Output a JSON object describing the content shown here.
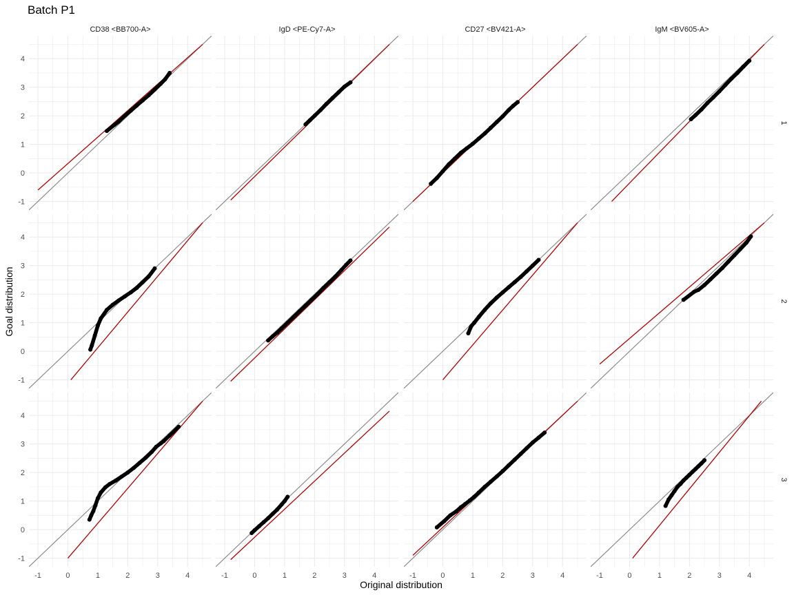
{
  "chart_data": {
    "type": "scatter",
    "title": "Batch P1",
    "xlabel": "Original distribution",
    "ylabel": "Goal distribution",
    "columns": [
      "CD38 <BB700-A>",
      "IgD <PE-Cy7-A>",
      "CD27 <BV421-A>",
      "IgM <BV605-A>"
    ],
    "rows": [
      "1",
      "2",
      "3"
    ],
    "xlim": [
      -1.3,
      4.8
    ],
    "ylim": [
      -1.3,
      4.8
    ],
    "x_ticks": [
      "-1",
      "0",
      "1",
      "2",
      "3",
      "4"
    ],
    "y_ticks": [
      "-1",
      "0",
      "1",
      "2",
      "3",
      "4"
    ],
    "grid": true,
    "reference_line": {
      "slope": 1,
      "intercept": 0,
      "color": "#8c8c8c"
    },
    "fit_line_color": "#b30000",
    "point_color": "#000000",
    "panels": [
      {
        "row": "1",
        "column": "CD38 <BB700-A>",
        "fit": [
          [
            -1.0,
            -0.6
          ],
          [
            4.5,
            4.5
          ]
        ],
        "points": [
          [
            1.3,
            1.47
          ],
          [
            1.55,
            1.68
          ],
          [
            1.7,
            1.8
          ],
          [
            1.9,
            2.0
          ],
          [
            2.1,
            2.18
          ],
          [
            2.3,
            2.36
          ],
          [
            2.5,
            2.54
          ],
          [
            2.7,
            2.72
          ],
          [
            2.9,
            2.92
          ],
          [
            3.1,
            3.12
          ],
          [
            3.25,
            3.28
          ],
          [
            3.4,
            3.5
          ]
        ]
      },
      {
        "row": "1",
        "column": "IgD <PE-Cy7-A>",
        "fit": [
          [
            -0.8,
            -0.95
          ],
          [
            4.5,
            4.5
          ]
        ],
        "points": [
          [
            1.7,
            1.7
          ],
          [
            1.85,
            1.85
          ],
          [
            2.0,
            2.0
          ],
          [
            2.2,
            2.2
          ],
          [
            2.4,
            2.42
          ],
          [
            2.6,
            2.62
          ],
          [
            2.8,
            2.82
          ],
          [
            3.0,
            3.02
          ],
          [
            3.2,
            3.17
          ]
        ]
      },
      {
        "row": "1",
        "column": "CD27 <BV421-A>",
        "fit": [
          [
            -1.0,
            -1.0
          ],
          [
            4.5,
            4.5
          ]
        ],
        "points": [
          [
            -0.4,
            -0.38
          ],
          [
            -0.2,
            -0.18
          ],
          [
            0.0,
            0.06
          ],
          [
            0.2,
            0.3
          ],
          [
            0.4,
            0.5
          ],
          [
            0.6,
            0.7
          ],
          [
            0.8,
            0.86
          ],
          [
            1.0,
            1.02
          ],
          [
            1.2,
            1.2
          ],
          [
            1.4,
            1.38
          ],
          [
            1.6,
            1.58
          ],
          [
            1.8,
            1.78
          ],
          [
            2.0,
            1.98
          ],
          [
            2.2,
            2.2
          ],
          [
            2.35,
            2.35
          ],
          [
            2.5,
            2.48
          ]
        ]
      },
      {
        "row": "1",
        "column": "IgM <BV605-A>",
        "fit": [
          [
            -0.6,
            -1.0
          ],
          [
            4.5,
            4.5
          ]
        ],
        "points": [
          [
            2.05,
            1.88
          ],
          [
            2.2,
            2.02
          ],
          [
            2.4,
            2.22
          ],
          [
            2.6,
            2.45
          ],
          [
            2.8,
            2.65
          ],
          [
            3.0,
            2.86
          ],
          [
            3.2,
            3.08
          ],
          [
            3.4,
            3.3
          ],
          [
            3.6,
            3.5
          ],
          [
            3.8,
            3.72
          ],
          [
            4.0,
            3.93
          ]
        ]
      },
      {
        "row": "2",
        "column": "CD38 <BB700-A>",
        "fit": [
          [
            0.1,
            -1.0
          ],
          [
            4.5,
            4.5
          ]
        ],
        "points": [
          [
            0.75,
            0.06
          ],
          [
            0.8,
            0.2
          ],
          [
            0.9,
            0.55
          ],
          [
            1.0,
            0.9
          ],
          [
            1.1,
            1.15
          ],
          [
            1.3,
            1.45
          ],
          [
            1.5,
            1.63
          ],
          [
            1.7,
            1.78
          ],
          [
            1.9,
            1.92
          ],
          [
            2.1,
            2.06
          ],
          [
            2.3,
            2.22
          ],
          [
            2.5,
            2.42
          ],
          [
            2.7,
            2.62
          ],
          [
            2.9,
            2.9
          ]
        ]
      },
      {
        "row": "2",
        "column": "IgD <PE-Cy7-A>",
        "fit": [
          [
            -0.8,
            -1.05
          ],
          [
            4.5,
            4.35
          ]
        ],
        "points": [
          [
            0.45,
            0.38
          ],
          [
            0.6,
            0.52
          ],
          [
            0.75,
            0.65
          ],
          [
            0.9,
            0.8
          ],
          [
            1.1,
            1.0
          ],
          [
            1.3,
            1.2
          ],
          [
            1.5,
            1.4
          ],
          [
            1.7,
            1.6
          ],
          [
            1.9,
            1.8
          ],
          [
            2.1,
            2.0
          ],
          [
            2.3,
            2.22
          ],
          [
            2.5,
            2.42
          ],
          [
            2.7,
            2.62
          ],
          [
            2.9,
            2.85
          ],
          [
            3.05,
            3.02
          ],
          [
            3.2,
            3.18
          ]
        ]
      },
      {
        "row": "2",
        "column": "CD27 <BV421-A>",
        "fit": [
          [
            0.0,
            -1.0
          ],
          [
            4.5,
            4.5
          ]
        ],
        "points": [
          [
            0.85,
            0.63
          ],
          [
            0.95,
            0.88
          ],
          [
            1.05,
            1.0
          ],
          [
            1.2,
            1.2
          ],
          [
            1.4,
            1.45
          ],
          [
            1.6,
            1.68
          ],
          [
            1.8,
            1.88
          ],
          [
            2.0,
            2.06
          ],
          [
            2.2,
            2.24
          ],
          [
            2.4,
            2.42
          ],
          [
            2.6,
            2.6
          ],
          [
            2.8,
            2.8
          ],
          [
            3.0,
            3.0
          ],
          [
            3.2,
            3.2
          ]
        ]
      },
      {
        "row": "2",
        "column": "IgM <BV605-A>",
        "fit": [
          [
            -1.0,
            -0.45
          ],
          [
            4.5,
            4.5
          ]
        ],
        "points": [
          [
            1.8,
            1.8
          ],
          [
            2.15,
            2.08
          ],
          [
            2.3,
            2.15
          ],
          [
            2.5,
            2.32
          ],
          [
            2.7,
            2.52
          ],
          [
            2.9,
            2.72
          ],
          [
            3.1,
            2.92
          ],
          [
            3.3,
            3.14
          ],
          [
            3.5,
            3.36
          ],
          [
            3.7,
            3.58
          ],
          [
            3.9,
            3.8
          ],
          [
            4.05,
            4.02
          ]
        ]
      },
      {
        "row": "3",
        "column": "CD38 <BB700-A>",
        "fit": [
          [
            0.0,
            -1.0
          ],
          [
            4.5,
            4.5
          ]
        ],
        "points": [
          [
            0.72,
            0.35
          ],
          [
            0.78,
            0.5
          ],
          [
            0.85,
            0.65
          ],
          [
            0.92,
            0.85
          ],
          [
            1.0,
            1.1
          ],
          [
            1.1,
            1.3
          ],
          [
            1.25,
            1.48
          ],
          [
            1.4,
            1.6
          ],
          [
            1.6,
            1.72
          ],
          [
            1.8,
            1.86
          ],
          [
            2.0,
            2.0
          ],
          [
            2.2,
            2.16
          ],
          [
            2.4,
            2.34
          ],
          [
            2.6,
            2.52
          ],
          [
            2.8,
            2.72
          ],
          [
            2.95,
            2.9
          ],
          [
            3.1,
            3.02
          ],
          [
            3.2,
            3.1
          ],
          [
            3.4,
            3.3
          ],
          [
            3.7,
            3.6
          ]
        ]
      },
      {
        "row": "3",
        "column": "IgD <PE-Cy7-A>",
        "fit": [
          [
            -0.8,
            -1.05
          ],
          [
            4.5,
            4.15
          ]
        ],
        "points": [
          [
            -0.1,
            -0.12
          ],
          [
            0.0,
            -0.02
          ],
          [
            0.15,
            0.12
          ],
          [
            0.3,
            0.26
          ],
          [
            0.45,
            0.4
          ],
          [
            0.6,
            0.55
          ],
          [
            0.75,
            0.7
          ],
          [
            0.9,
            0.88
          ],
          [
            1.0,
            1.0
          ],
          [
            1.1,
            1.15
          ]
        ]
      },
      {
        "row": "3",
        "column": "CD27 <BV421-A>",
        "fit": [
          [
            -1.0,
            -0.9
          ],
          [
            4.5,
            4.5
          ]
        ],
        "points": [
          [
            -0.2,
            0.08
          ],
          [
            0.05,
            0.3
          ],
          [
            0.25,
            0.5
          ],
          [
            0.45,
            0.64
          ],
          [
            0.6,
            0.78
          ],
          [
            0.75,
            0.9
          ],
          [
            0.9,
            1.02
          ],
          [
            1.05,
            1.15
          ],
          [
            1.2,
            1.3
          ],
          [
            1.4,
            1.5
          ],
          [
            1.6,
            1.68
          ],
          [
            1.8,
            1.86
          ],
          [
            2.0,
            2.05
          ],
          [
            2.2,
            2.25
          ],
          [
            2.4,
            2.45
          ],
          [
            2.6,
            2.65
          ],
          [
            2.8,
            2.85
          ],
          [
            3.0,
            3.05
          ],
          [
            3.2,
            3.22
          ],
          [
            3.4,
            3.4
          ]
        ]
      },
      {
        "row": "3",
        "column": "IgM <BV605-A>",
        "fit": [
          [
            0.1,
            -1.0
          ],
          [
            4.4,
            4.5
          ]
        ],
        "points": [
          [
            1.2,
            0.83
          ],
          [
            1.3,
            1.05
          ],
          [
            1.4,
            1.2
          ],
          [
            1.5,
            1.35
          ],
          [
            1.6,
            1.5
          ],
          [
            1.7,
            1.6
          ],
          [
            1.8,
            1.72
          ],
          [
            1.9,
            1.82
          ],
          [
            2.0,
            1.92
          ],
          [
            2.1,
            2.02
          ],
          [
            2.2,
            2.12
          ],
          [
            2.3,
            2.22
          ],
          [
            2.4,
            2.32
          ],
          [
            2.5,
            2.43
          ]
        ]
      }
    ]
  }
}
